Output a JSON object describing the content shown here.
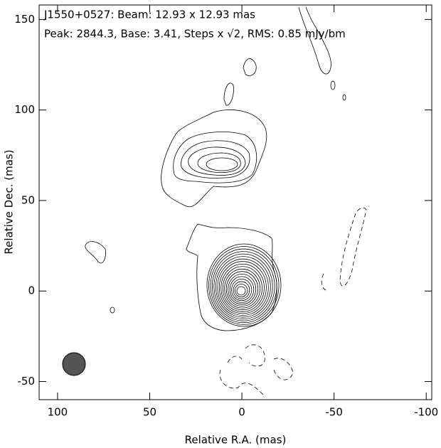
{
  "chart_data": {
    "type": "contour",
    "title": "J1550+0527: Beam: 12.93 x 12.93 mas",
    "subtitle": "Peak: 2844.3, Base: 3.41, Steps x √2, RMS: 0.85 mJy/bm",
    "x_label": "Relative R.A. (mas)",
    "y_label": "Relative Dec. (mas)",
    "xlim": [
      110,
      -103
    ],
    "ylim": [
      -60,
      158
    ],
    "xticks": [
      100,
      50,
      0,
      -50,
      -100
    ],
    "yticks": [
      -50,
      0,
      50,
      100,
      150
    ]
  }
}
